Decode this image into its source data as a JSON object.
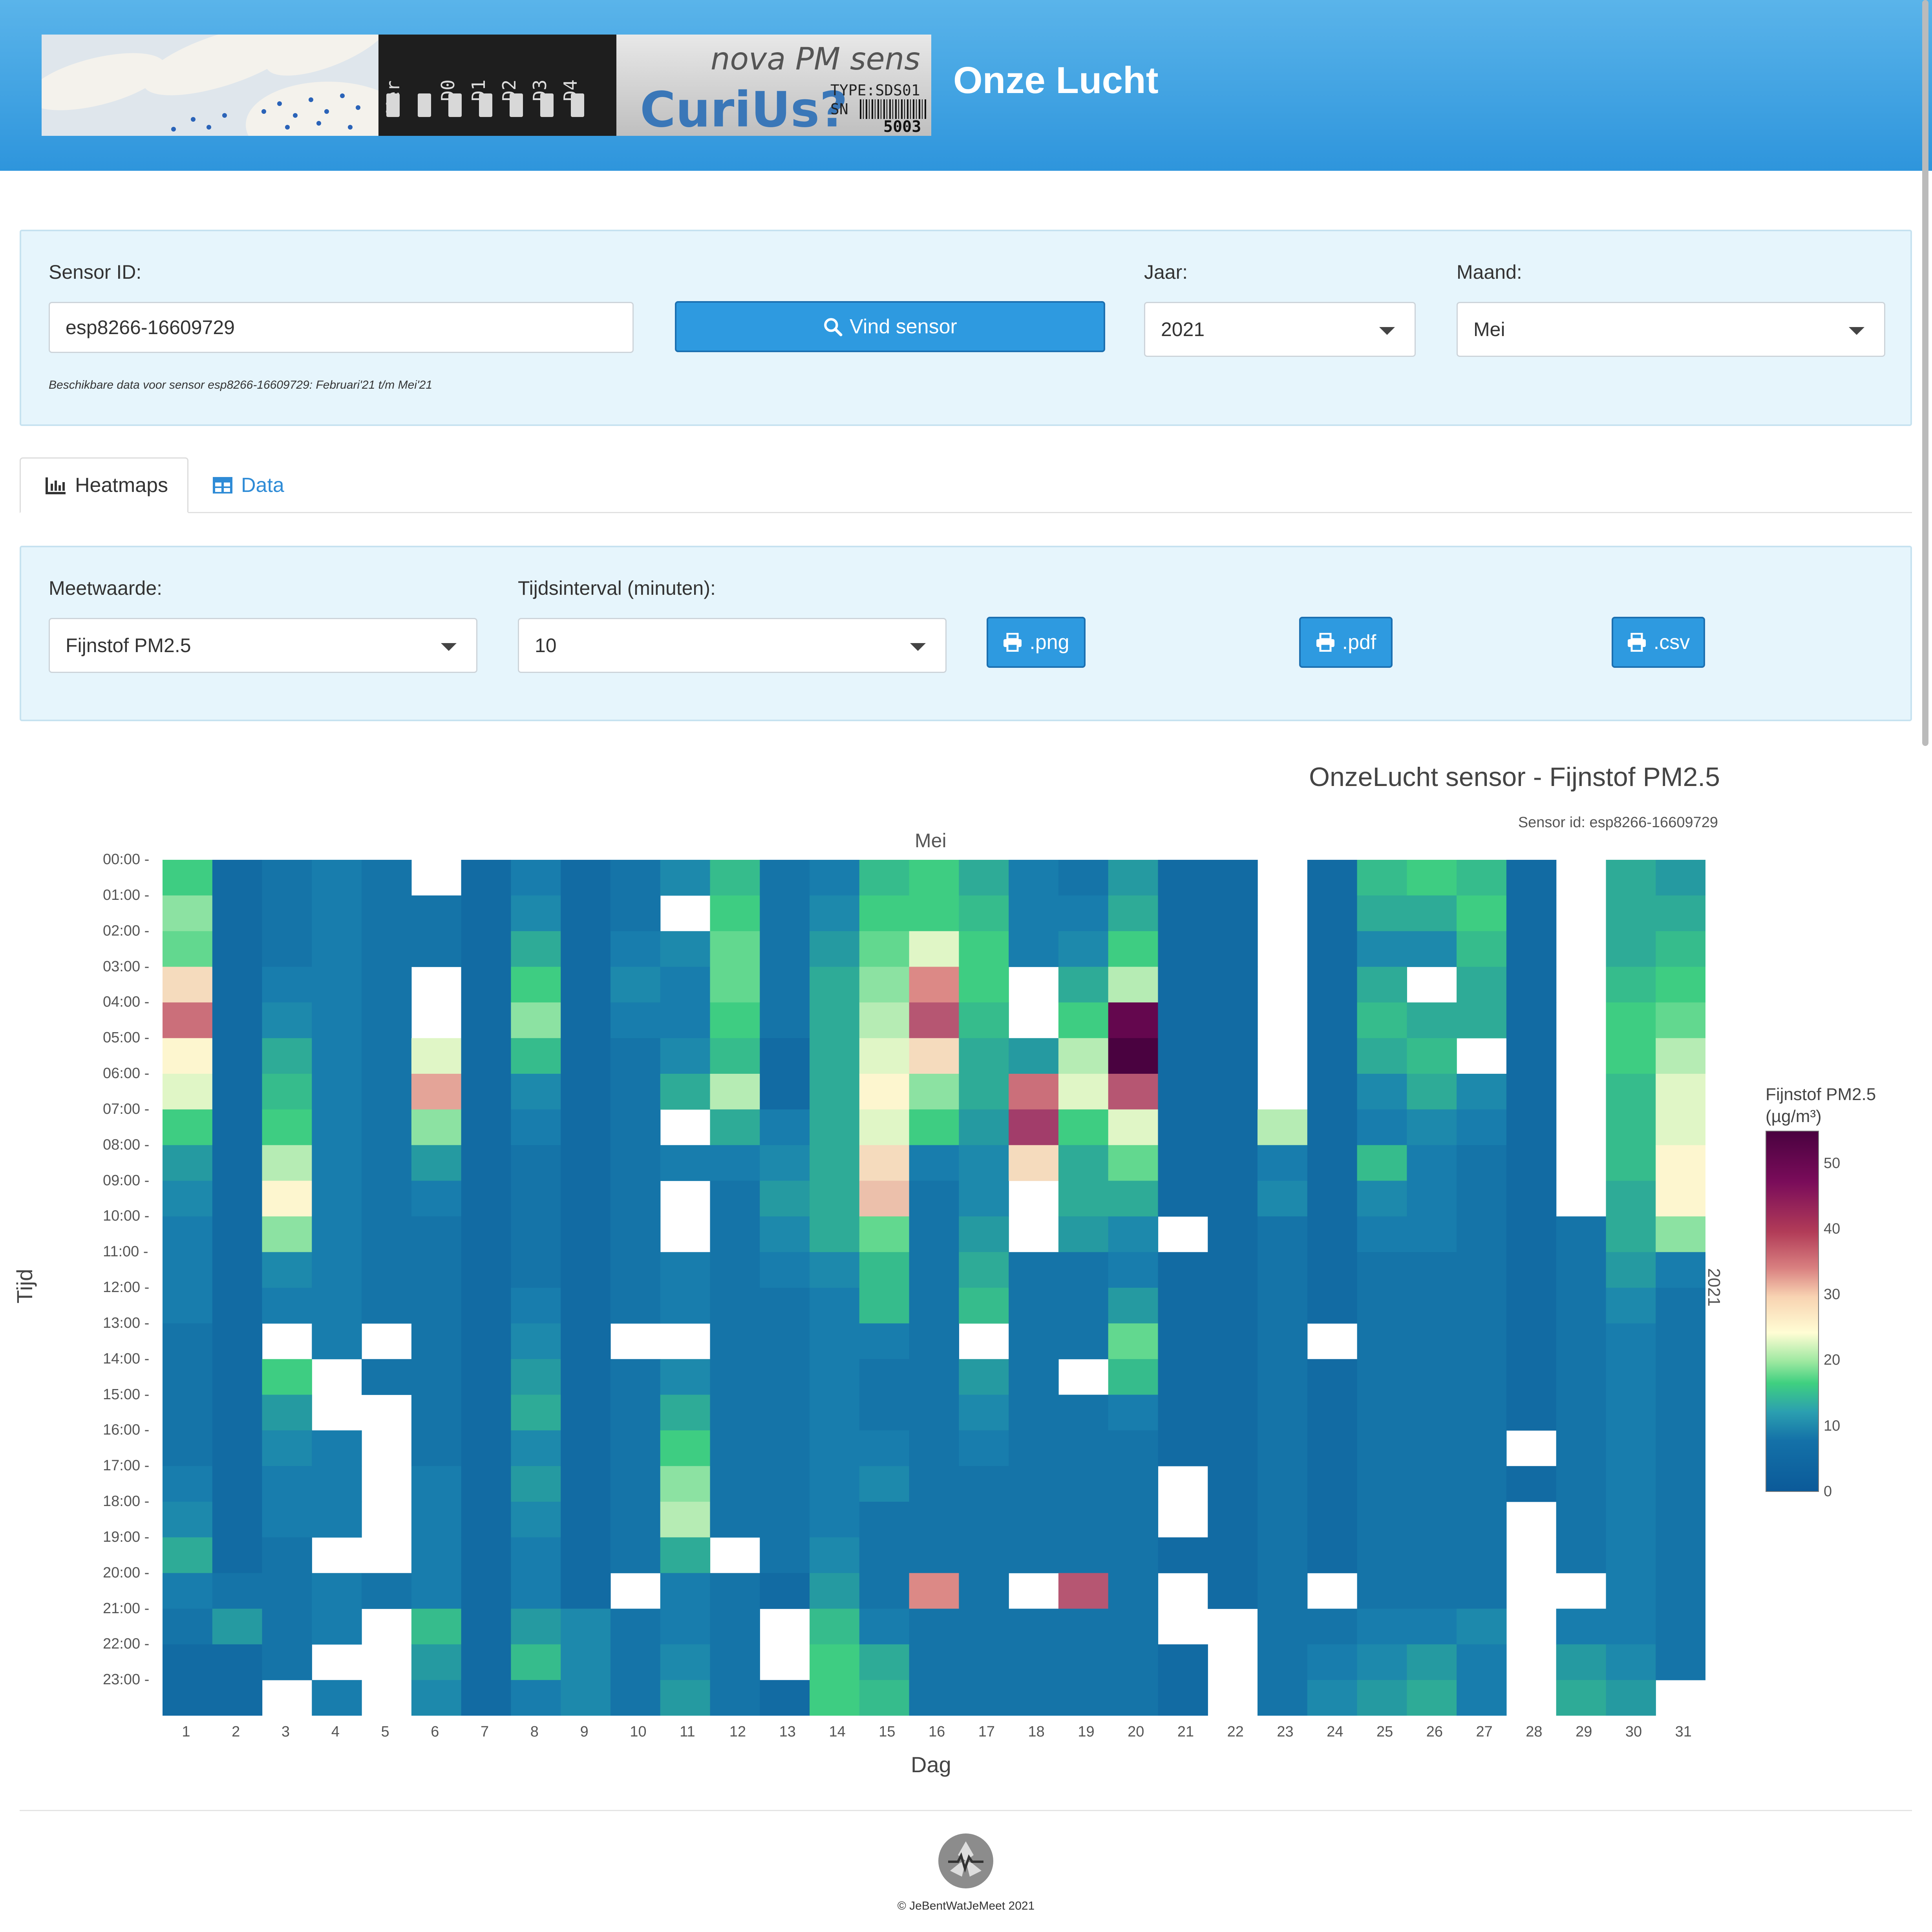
{
  "site": {
    "title": "Onze Lucht"
  },
  "banner": {
    "board_labels": [
      "Ver",
      "D0",
      "D1",
      "D2",
      "D3",
      "D4"
    ],
    "sensor_text": "nova PM sens",
    "curious_text": "CuriUs?",
    "type_text": "TYPE:SDS01",
    "sn_text": "SN",
    "number_text": "5003"
  },
  "search": {
    "sensor_label": "Sensor ID:",
    "sensor_value": "esp8266-16609729",
    "find_button": "Vind sensor",
    "year_label": "Jaar:",
    "year_value": "2021",
    "month_label": "Maand:",
    "month_value": "Mei",
    "availability": "Beschikbare data voor sensor esp8266-16609729: Februari'21 t/m Mei'21"
  },
  "tabs": [
    {
      "label": "Heatmaps",
      "icon": "bar-chart-icon"
    },
    {
      "label": "Data",
      "icon": "table-icon"
    }
  ],
  "controls": {
    "measure_label": "Meetwaarde:",
    "measure_value": "Fijnstof PM2.5",
    "interval_label": "Tijdsinterval (minuten):",
    "interval_value": "10",
    "png_button": ".png",
    "pdf_button": ".pdf",
    "csv_button": ".csv"
  },
  "chart_data": {
    "type": "heatmap",
    "title": "OnzeLucht sensor - Fijnstof PM2.5",
    "subtitle": "Sensor id: esp8266-16609729",
    "month": "Mei",
    "year_label": "2021",
    "xlabel": "Dag",
    "ylabel": "Tijd",
    "x_categories": [
      "1",
      "2",
      "3",
      "4",
      "5",
      "6",
      "7",
      "8",
      "9",
      "10",
      "11",
      "12",
      "13",
      "14",
      "15",
      "16",
      "17",
      "18",
      "19",
      "20",
      "21",
      "22",
      "23",
      "24",
      "25",
      "26",
      "27",
      "28",
      "29",
      "30",
      "31"
    ],
    "y_categories": [
      "00:00",
      "01:00",
      "02:00",
      "03:00",
      "04:00",
      "05:00",
      "06:00",
      "07:00",
      "08:00",
      "09:00",
      "10:00",
      "11:00",
      "12:00",
      "13:00",
      "14:00",
      "15:00",
      "16:00",
      "17:00",
      "18:00",
      "19:00",
      "20:00",
      "21:00",
      "22:00",
      "23:00"
    ],
    "colorbar_title": "Fijnstof PM2.5 (µg/m³)",
    "colorbar_ticks": [
      "0",
      "10",
      "20",
      "30",
      "40",
      "50"
    ],
    "zrange": [
      0,
      55
    ],
    "colorscale": [
      "#0b5a99",
      "#1a82b0",
      "#3fd080",
      "#fffdd4",
      "#d98080",
      "#7a0c5a",
      "#4a0240"
    ],
    "approx_values_hourly": [
      [
        18,
        22,
        20,
        30,
        38,
        28,
        26,
        18,
        12,
        10,
        8,
        8,
        8,
        6,
        6,
        6,
        6,
        8,
        10,
        14,
        8,
        6,
        4,
        4
      ],
      [
        4,
        4,
        4,
        4,
        4,
        4,
        4,
        4,
        4,
        4,
        4,
        4,
        4,
        4,
        4,
        4,
        4,
        4,
        4,
        4,
        6,
        12,
        4,
        4
      ],
      [
        6,
        6,
        6,
        8,
        10,
        14,
        16,
        18,
        24,
        28,
        22,
        10,
        8,
        14,
        18,
        12,
        10,
        8,
        8,
        6,
        6,
        6,
        6,
        6
      ],
      [
        8,
        8,
        8,
        8,
        8,
        8,
        8,
        8,
        8,
        8,
        8,
        8,
        8,
        8,
        8,
        8,
        8,
        8,
        8,
        8,
        8,
        8,
        8,
        8
      ],
      [
        6,
        6,
        6,
        6,
        6,
        6,
        6,
        6,
        6,
        6,
        6,
        6,
        6,
        6,
        6,
        6,
        6,
        6,
        6,
        6,
        6,
        6,
        6,
        6
      ],
      [
        6,
        6,
        6,
        14,
        18,
        26,
        34,
        22,
        12,
        8,
        6,
        6,
        6,
        6,
        6,
        6,
        6,
        8,
        8,
        8,
        8,
        16,
        12,
        10
      ],
      [
        4,
        4,
        4,
        4,
        4,
        4,
        4,
        4,
        4,
        4,
        4,
        4,
        4,
        4,
        4,
        4,
        4,
        4,
        4,
        4,
        4,
        4,
        4,
        4
      ],
      [
        8,
        10,
        14,
        18,
        22,
        16,
        10,
        8,
        6,
        6,
        6,
        6,
        8,
        10,
        12,
        14,
        10,
        12,
        10,
        8,
        8,
        12,
        16,
        8
      ],
      [
        4,
        4,
        4,
        4,
        4,
        4,
        4,
        4,
        4,
        4,
        4,
        4,
        4,
        4,
        4,
        4,
        4,
        4,
        4,
        4,
        4,
        10,
        10,
        10
      ],
      [
        6,
        6,
        8,
        10,
        8,
        6,
        6,
        6,
        6,
        6,
        6,
        6,
        6,
        6,
        6,
        6,
        6,
        6,
        6,
        6,
        6,
        6,
        6,
        6
      ],
      [
        10,
        10,
        10,
        8,
        8,
        10,
        14,
        12,
        8,
        8,
        8,
        8,
        8,
        8,
        10,
        14,
        18,
        22,
        24,
        14,
        8,
        8,
        10,
        12
      ],
      [
        16,
        18,
        20,
        20,
        18,
        16,
        24,
        14,
        8,
        6,
        6,
        6,
        6,
        6,
        6,
        6,
        6,
        6,
        6,
        6,
        6,
        6,
        6,
        6
      ],
      [
        6,
        6,
        6,
        6,
        6,
        4,
        4,
        8,
        10,
        12,
        10,
        8,
        6,
        6,
        6,
        6,
        6,
        6,
        6,
        6,
        4,
        4,
        4,
        4
      ],
      [
        8,
        10,
        12,
        14,
        14,
        14,
        14,
        14,
        14,
        14,
        14,
        10,
        8,
        8,
        8,
        8,
        8,
        8,
        8,
        10,
        12,
        16,
        18,
        18
      ],
      [
        16,
        18,
        20,
        22,
        24,
        26,
        28,
        26,
        30,
        32,
        20,
        16,
        16,
        8,
        6,
        6,
        8,
        10,
        6,
        6,
        6,
        8,
        14,
        16
      ],
      [
        18,
        18,
        26,
        36,
        40,
        30,
        22,
        18,
        8,
        6,
        6,
        6,
        6,
        6,
        6,
        6,
        6,
        6,
        6,
        6,
        36,
        6,
        6,
        6
      ],
      [
        14,
        16,
        18,
        18,
        16,
        14,
        14,
        12,
        10,
        10,
        12,
        14,
        16,
        14,
        12,
        10,
        8,
        6,
        6,
        6,
        6,
        6,
        6,
        6
      ],
      [
        8,
        8,
        8,
        10,
        14,
        12,
        38,
        42,
        30,
        26,
        8,
        6,
        6,
        6,
        6,
        6,
        6,
        6,
        6,
        6,
        6,
        6,
        6,
        6
      ],
      [
        6,
        8,
        10,
        14,
        18,
        24,
        26,
        18,
        14,
        14,
        12,
        6,
        6,
        6,
        6,
        6,
        6,
        6,
        6,
        6,
        40,
        6,
        6,
        6
      ],
      [
        12,
        14,
        18,
        24,
        50,
        55,
        40,
        26,
        20,
        14,
        10,
        8,
        12,
        20,
        16,
        8,
        6,
        6,
        6,
        6,
        6,
        6,
        6,
        6
      ],
      [
        4,
        4,
        4,
        4,
        4,
        4,
        4,
        4,
        4,
        4,
        4,
        4,
        4,
        4,
        4,
        4,
        4,
        4,
        4,
        4,
        4,
        4,
        4,
        4
      ],
      [
        4,
        4,
        4,
        4,
        4,
        4,
        4,
        4,
        4,
        4,
        4,
        4,
        4,
        4,
        4,
        4,
        4,
        4,
        4,
        4,
        4,
        4,
        4,
        4
      ],
      [
        null,
        null,
        null,
        null,
        null,
        null,
        null,
        24,
        8,
        10,
        6,
        6,
        6,
        6,
        6,
        6,
        6,
        6,
        6,
        6,
        6,
        6,
        6,
        6
      ],
      [
        4,
        4,
        4,
        4,
        4,
        4,
        4,
        4,
        4,
        4,
        4,
        4,
        4,
        4,
        4,
        4,
        4,
        4,
        4,
        4,
        6,
        6,
        8,
        10
      ],
      [
        16,
        14,
        10,
        14,
        16,
        14,
        10,
        8,
        16,
        10,
        8,
        6,
        6,
        6,
        6,
        6,
        6,
        6,
        6,
        6,
        6,
        8,
        10,
        12
      ],
      [
        18,
        14,
        10,
        12,
        14,
        16,
        14,
        10,
        8,
        8,
        8,
        6,
        6,
        6,
        6,
        6,
        6,
        6,
        6,
        6,
        6,
        8,
        12,
        14
      ],
      [
        16,
        18,
        16,
        14,
        14,
        12,
        10,
        8,
        6,
        6,
        6,
        6,
        6,
        6,
        6,
        6,
        6,
        6,
        6,
        6,
        6,
        10,
        8,
        8
      ],
      [
        4,
        4,
        4,
        4,
        4,
        4,
        4,
        4,
        4,
        4,
        4,
        4,
        4,
        4,
        4,
        4,
        4,
        4,
        4,
        4,
        null,
        null,
        null,
        null
      ],
      [
        null,
        null,
        null,
        null,
        null,
        null,
        null,
        null,
        null,
        null,
        6,
        6,
        6,
        6,
        6,
        6,
        6,
        6,
        6,
        6,
        6,
        8,
        12,
        14
      ],
      [
        14,
        14,
        14,
        16,
        18,
        18,
        16,
        16,
        16,
        14,
        14,
        12,
        10,
        8,
        8,
        8,
        8,
        8,
        8,
        8,
        8,
        8,
        10,
        12
      ],
      [
        12,
        14,
        16,
        18,
        20,
        24,
        26,
        26,
        28,
        28,
        22,
        8,
        6,
        6,
        6,
        6,
        6,
        6,
        6,
        6,
        6,
        6,
        6,
        6
      ]
    ],
    "missing_cells": [
      [
        6,
        0
      ],
      [
        6,
        3
      ],
      [
        6,
        4
      ],
      [
        11,
        1
      ],
      [
        11,
        7
      ],
      [
        11,
        9
      ],
      [
        11,
        10
      ],
      [
        11,
        13
      ],
      [
        18,
        3
      ],
      [
        18,
        4
      ],
      [
        18,
        9
      ],
      [
        18,
        10
      ],
      [
        19,
        14
      ],
      [
        21,
        10
      ],
      [
        21,
        17
      ],
      [
        21,
        18
      ],
      [
        21,
        20
      ],
      [
        21,
        21
      ],
      [
        3,
        13
      ],
      [
        3,
        23
      ],
      [
        4,
        14
      ],
      [
        4,
        15
      ],
      [
        4,
        19
      ],
      [
        4,
        22
      ],
      [
        5,
        13
      ],
      [
        5,
        15
      ],
      [
        5,
        16
      ],
      [
        5,
        17
      ],
      [
        5,
        18
      ],
      [
        5,
        19
      ],
      [
        5,
        21
      ],
      [
        5,
        22
      ],
      [
        5,
        23
      ],
      [
        10,
        13
      ],
      [
        10,
        20
      ],
      [
        12,
        19
      ],
      [
        13,
        21
      ],
      [
        13,
        22
      ],
      [
        17,
        13
      ],
      [
        18,
        20
      ],
      [
        22,
        21
      ],
      [
        22,
        22
      ],
      [
        22,
        23
      ],
      [
        24,
        13
      ],
      [
        24,
        20
      ],
      [
        26,
        3
      ],
      [
        27,
        5
      ],
      [
        28,
        16
      ],
      [
        28,
        18
      ],
      [
        28,
        19
      ],
      [
        29,
        20
      ],
      [
        31,
        23
      ]
    ]
  },
  "footer": {
    "copyright": "© JeBentWatJeMeet 2021"
  }
}
